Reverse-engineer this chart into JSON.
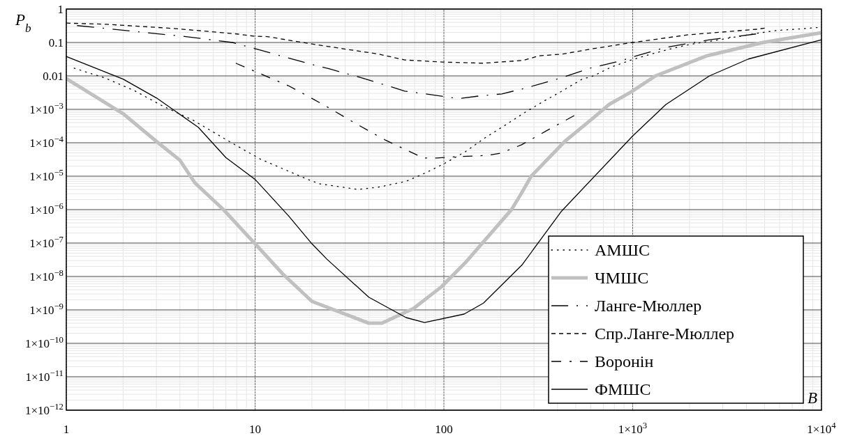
{
  "chart_data": {
    "type": "line",
    "xlabel": "B",
    "ylabel": "P$_{b}$",
    "log": "xy",
    "grid": true,
    "legend": "bottom right",
    "xlim": [
      1,
      10000
    ],
    "ylim": [
      1e-12,
      1
    ],
    "xticks": [
      1,
      10,
      100,
      {
        "value": 1000,
        "label": "1×10$^{3}$"
      },
      {
        "value": 10000,
        "label": "1×10$^{4}$"
      }
    ],
    "yticks": [
      {
        "value": 1e-12,
        "label": "1×10$^{−12}$"
      },
      {
        "value": 1e-11,
        "label": "1×10$^{−11}$"
      },
      {
        "value": 1e-10,
        "label": "1×10$^{−10}$"
      },
      {
        "value": 1e-09,
        "label": "1×10$^{−9}$"
      },
      {
        "value": 1e-08,
        "label": "1×10$^{−8}$"
      },
      {
        "value": 1e-07,
        "label": "1×10$^{−7}$"
      },
      {
        "value": 1e-06,
        "label": "1×10$^{−6}$"
      },
      {
        "value": 1e-05,
        "label": "1×10$^{−5}$"
      },
      {
        "value": 0.0001,
        "label": "1×10$^{−4}$"
      },
      {
        "value": 0.001,
        "label": "1×10$^{−3}$"
      },
      0.01,
      0.1,
      1
    ],
    "series": [
      {
        "name": "АМШС",
        "color": "#000000",
        "line_style": "dotted",
        "x": [
          1.1,
          1.6,
          2.3,
          3.2,
          4.7,
          7.5,
          10.6,
          19,
          22,
          35,
          45,
          63,
          81,
          102,
          130,
          165,
          210,
          268,
          335,
          425,
          540,
          620,
          780,
          985,
          1250,
          1600,
          2000,
          2850,
          4600,
          5800,
          7400,
          9500
        ],
        "values": [
          0.017,
          0.0087,
          0.0036,
          0.0013,
          0.00047,
          0.0001,
          3.3e-05,
          8e-06,
          5.9e-06,
          4e-06,
          4.7e-06,
          7e-06,
          1.3e-05,
          2.5e-05,
          5.4e-05,
          0.00014,
          0.00033,
          0.0008,
          0.0017,
          0.0036,
          0.008,
          0.01,
          0.019,
          0.03,
          0.045,
          0.065,
          0.087,
          0.12,
          0.19,
          0.23,
          0.25,
          0.28
        ]
      },
      {
        "name": "ЧМШС",
        "color": "#c0c0c0",
        "line_style": "solid",
        "x": [
          1,
          2,
          3,
          4,
          4.8,
          6.8,
          9,
          10,
          14,
          20,
          40,
          47,
          69,
          97,
          130,
          228,
          255,
          290,
          437,
          615,
          750,
          980,
          1320,
          2470,
          4900,
          10000
        ],
        "values": [
          0.0083,
          0.00074,
          0.00011,
          3e-05,
          6.3e-06,
          1e-06,
          1.8e-07,
          9.5e-08,
          1.2e-08,
          1.8e-09,
          4e-10,
          4e-10,
          1.1e-09,
          4.9e-09,
          2.6e-08,
          1e-06,
          2.8e-06,
          1e-05,
          0.00011,
          0.00054,
          0.0014,
          0.0033,
          0.01,
          0.04,
          0.1,
          0.195
        ]
      },
      {
        "name": "Ланге-Мюллер",
        "color": "#000000",
        "line_style": "dashed",
        "x": [
          1.14,
          4.3,
          7.6,
          10,
          20,
          25,
          36,
          54,
          62,
          80,
          120,
          153,
          203,
          270,
          405,
          595,
          880,
          985,
          1475,
          2550,
          4500
        ],
        "values": [
          0.32,
          0.15,
          0.1,
          0.065,
          0.022,
          0.016,
          0.009,
          0.0045,
          0.0035,
          0.0029,
          0.0021,
          0.0025,
          0.0029,
          0.0043,
          0.0083,
          0.017,
          0.029,
          0.036,
          0.07,
          0.12,
          0.18
        ]
      },
      {
        "name": "Спр.Ланге-Мюллер",
        "color": "#000000",
        "line_style": "dashed",
        "x": [
          1,
          1.64,
          3.8,
          8,
          9.8,
          11.6,
          20,
          45,
          62,
          98,
          162,
          262,
          320,
          425,
          615,
          1000,
          1970,
          4600,
          5000
        ],
        "values": [
          0.38,
          0.35,
          0.26,
          0.18,
          0.155,
          0.15,
          0.09,
          0.045,
          0.03,
          0.026,
          0.024,
          0.029,
          0.04,
          0.045,
          0.065,
          0.1,
          0.17,
          0.25,
          0.27
        ]
      },
      {
        "name": "Воронін",
        "color": "#000000",
        "line_style": "dashed",
        "x": [
          7.9,
          15,
          19,
          24,
          34,
          49,
          78,
          92,
          115,
          171,
          200,
          258,
          377,
          490
        ],
        "values": [
          0.024,
          0.0051,
          0.0025,
          0.0012,
          0.00038,
          0.00012,
          3.5e-05,
          3.5e-05,
          3.8e-05,
          4.2e-05,
          4.9e-05,
          8.7e-05,
          0.00029,
          0.00065
        ]
      },
      {
        "name": "ФМШС",
        "color": "#000000",
        "line_style": "solid",
        "x": [
          1,
          2,
          3,
          5,
          7,
          10,
          15,
          20,
          24,
          40,
          63,
          79,
          128,
          162,
          259,
          420,
          1000,
          1500,
          2550,
          4100,
          10000
        ],
        "values": [
          0.038,
          0.008,
          0.0022,
          0.00029,
          3.6e-05,
          8e-06,
          6.6e-07,
          9.5e-08,
          3.3e-08,
          2.4e-09,
          5.9e-10,
          4.2e-10,
          7.5e-10,
          1.6e-09,
          2.2e-08,
          9e-07,
          0.00016,
          0.0014,
          0.01,
          0.032,
          0.12
        ]
      }
    ]
  }
}
